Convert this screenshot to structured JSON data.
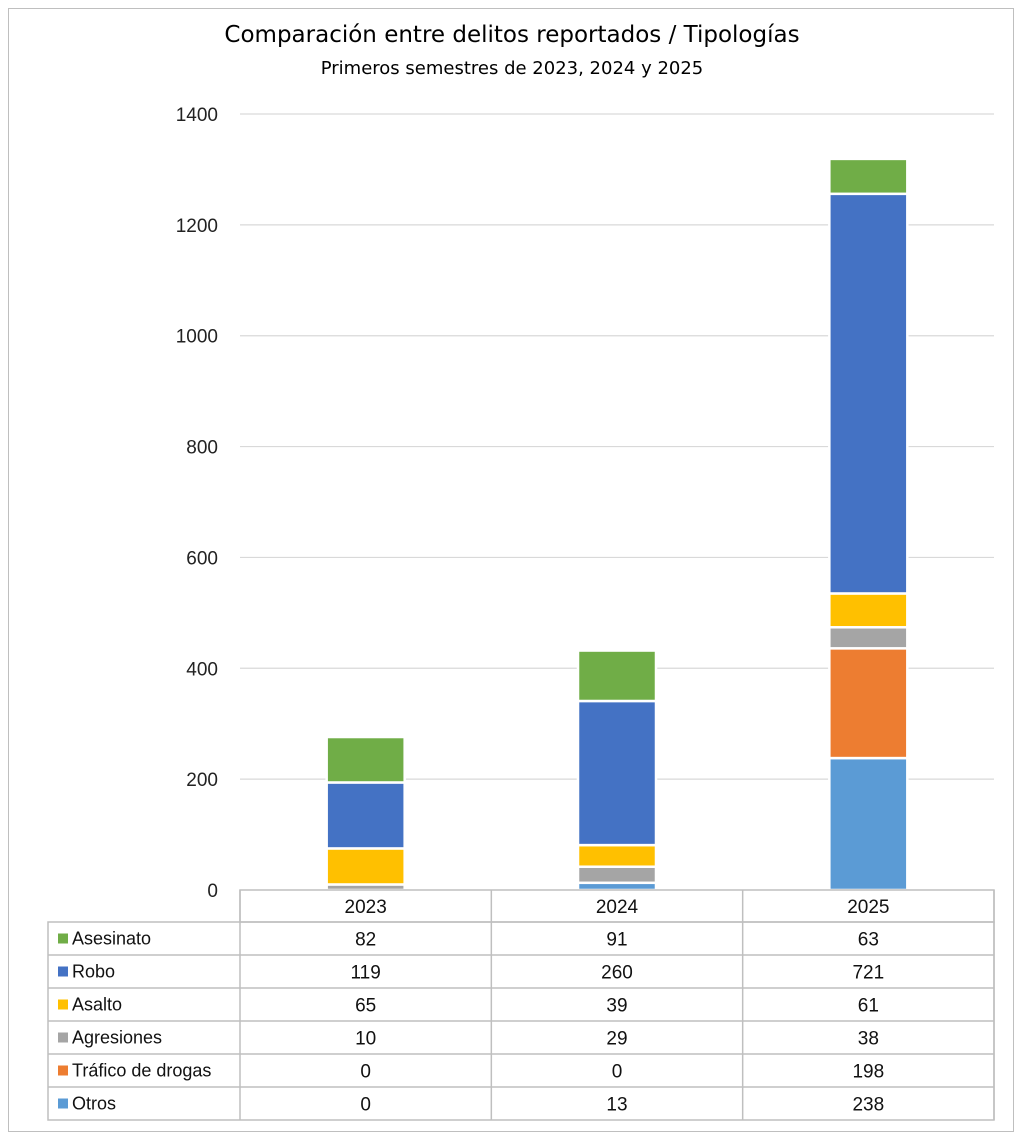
{
  "chart_data": {
    "type": "bar",
    "stacked": true,
    "title": "Comparación entre delitos reportados / Tipologías",
    "subtitle": "Primeros semestres de 2023, 2024 y 2025",
    "categories": [
      "2023",
      "2024",
      "2025"
    ],
    "series": [
      {
        "name": "Otros",
        "values": [
          0,
          13,
          238
        ],
        "color": "#5b9bd5"
      },
      {
        "name": "Tráfico de drogas",
        "values": [
          0,
          0,
          198
        ],
        "color": "#ed7d31"
      },
      {
        "name": "Agresiones",
        "values": [
          10,
          29,
          38
        ],
        "color": "#a5a5a5"
      },
      {
        "name": "Asalto",
        "values": [
          65,
          39,
          61
        ],
        "color": "#ffc000"
      },
      {
        "name": "Robo",
        "values": [
          119,
          260,
          721
        ],
        "color": "#4472c4"
      },
      {
        "name": "Asesinato",
        "values": [
          82,
          91,
          63
        ],
        "color": "#70ad47"
      }
    ],
    "table_order": [
      "Asesinato",
      "Robo",
      "Asalto",
      "Agresiones",
      "Tráfico de drogas",
      "Otros"
    ],
    "ylim": [
      0,
      1400
    ],
    "yticks": [
      0,
      200,
      400,
      600,
      800,
      1000,
      1200,
      1400
    ],
    "grid": true,
    "legend": "data-table-below"
  }
}
